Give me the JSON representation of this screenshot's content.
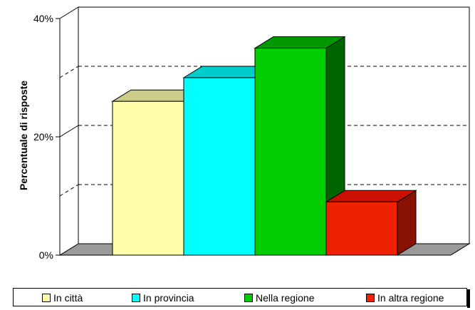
{
  "chart_data": {
    "type": "bar",
    "ylabel": "Percentuale di risposte",
    "ylim": [
      0,
      40
    ],
    "yticks": [
      "0%",
      "20%",
      "40%"
    ],
    "grid": true,
    "legend_position": "bottom",
    "series": [
      {
        "name": "In città",
        "value": 26,
        "color": "#FFFFAA",
        "top_color": "#CCCC88",
        "side_color": "#AAAA66"
      },
      {
        "name": "In provincia",
        "value": 30,
        "color": "#00FFFF",
        "top_color": "#00CCCC",
        "side_color": "#009999"
      },
      {
        "name": "Nella regione",
        "value": 35,
        "color": "#00CC00",
        "top_color": "#009900",
        "side_color": "#006600"
      },
      {
        "name": "In altra regione",
        "value": 9,
        "color": "#EE2200",
        "top_color": "#CC1100",
        "side_color": "#881100"
      }
    ]
  }
}
